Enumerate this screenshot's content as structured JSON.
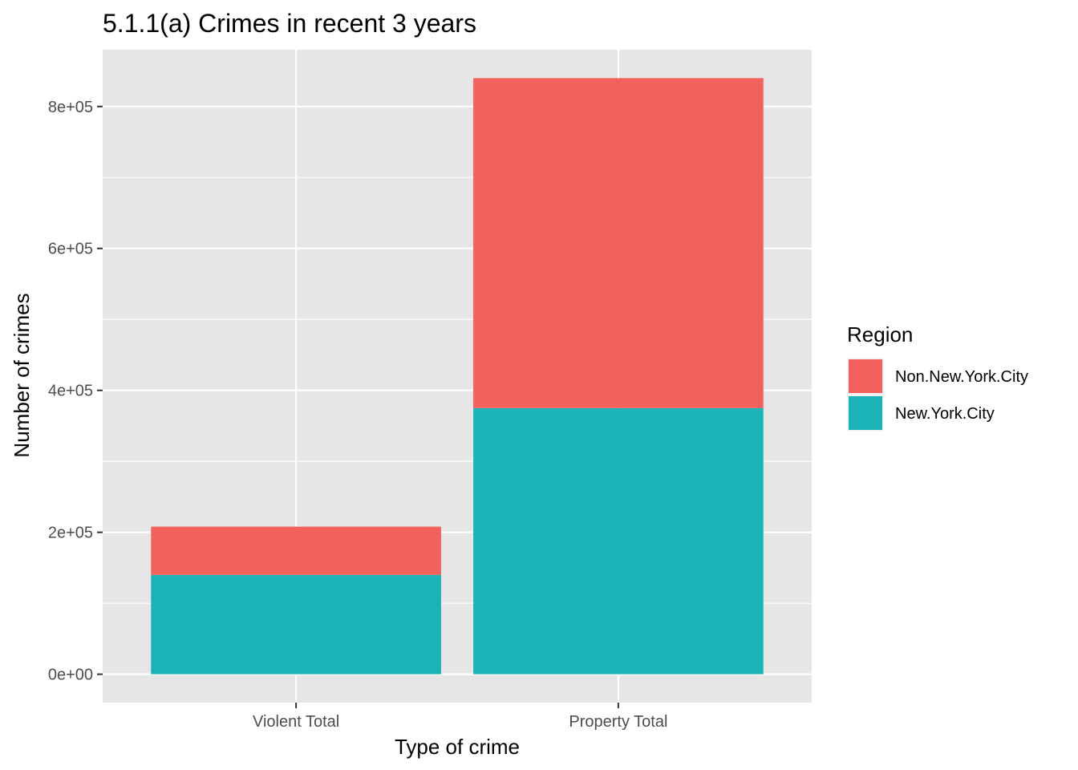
{
  "chart_data": {
    "type": "bar",
    "stacked": true,
    "title": "5.1.1(a) Crimes in recent 3 years",
    "xlabel": "Type of crime",
    "ylabel": "Number of crimes",
    "categories": [
      "Violent Total",
      "Property Total"
    ],
    "series": [
      {
        "name": "Non.New.York.City",
        "values": [
          68000,
          465000
        ],
        "color": "#F2615C"
      },
      {
        "name": "New.York.City",
        "values": [
          140000,
          375000
        ],
        "color": "#19B3B8"
      }
    ],
    "ylim": [
      -40000,
      880000
    ],
    "yticks": [
      0,
      200000,
      400000,
      600000,
      800000
    ],
    "ytick_labels": [
      "0e+00",
      "2e+05",
      "4e+05",
      "6e+05",
      "8e+05"
    ],
    "grid": true,
    "legend": {
      "title": "Region",
      "position": "right",
      "entries": [
        "Non.New.York.City",
        "New.York.City"
      ]
    },
    "panel_color": "#E6E6E6"
  }
}
